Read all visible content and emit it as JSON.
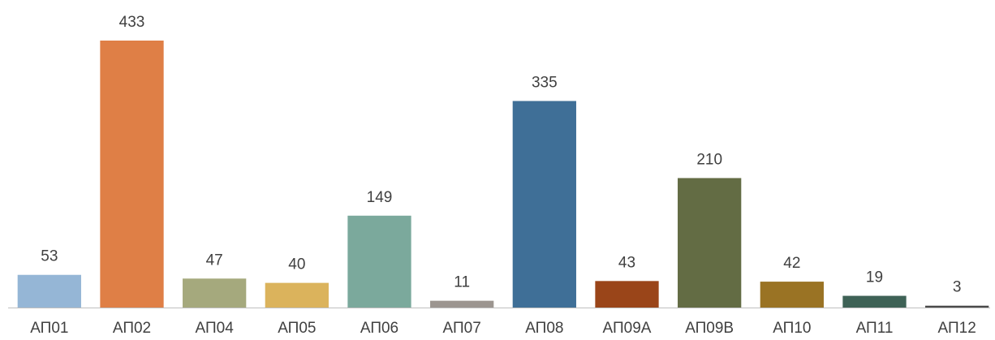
{
  "chart_data": {
    "type": "bar",
    "categories": [
      "АП01",
      "АП02",
      "АП04",
      "АП05",
      "АП06",
      "АП07",
      "АП08",
      "АП09А",
      "АП09В",
      "АП10",
      "АП11",
      "АП12"
    ],
    "values": [
      53,
      433,
      47,
      40,
      149,
      11,
      335,
      43,
      210,
      42,
      19,
      3
    ],
    "colors": [
      "#95b6d6",
      "#df7f46",
      "#a5a97d",
      "#dbb35c",
      "#7ba99c",
      "#9c9590",
      "#3f6f97",
      "#9a4519",
      "#636c44",
      "#9a7324",
      "#3e6256",
      "#4a4a4a"
    ]
  }
}
